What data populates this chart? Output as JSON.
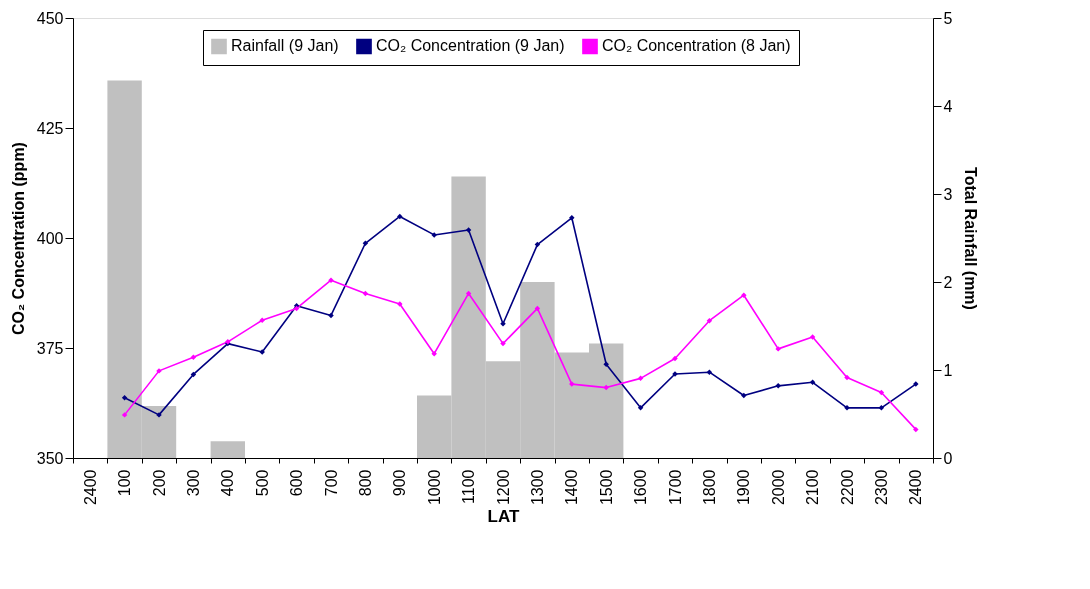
{
  "chart_data": {
    "type": "line",
    "xlabel": "LAT",
    "ylabel": "CO₂ Concentration (ppm)",
    "y2label": "Total Rainfall (mm)",
    "categories": [
      "2400",
      "100",
      "200",
      "300",
      "400",
      "500",
      "600",
      "700",
      "800",
      "900",
      "1000",
      "1100",
      "1200",
      "1300",
      "1400",
      "1500",
      "1600",
      "1700",
      "1800",
      "1900",
      "2000",
      "2100",
      "2200",
      "2300",
      "2400"
    ],
    "series": [
      {
        "name": "Rainfall (9 Jan)",
        "type": "bar",
        "axis": "y2",
        "color": "#c0c0c0",
        "values": [
          null,
          4.29,
          0.59,
          null,
          0.19,
          null,
          null,
          null,
          null,
          null,
          0.71,
          3.2,
          1.1,
          2.0,
          1.2,
          1.3,
          null,
          null,
          null,
          null,
          null,
          null,
          null,
          null,
          null
        ]
      },
      {
        "name": "CO₂ Concentration (9 Jan)",
        "color": "#000080",
        "values": [
          null,
          363.7,
          359.8,
          369.0,
          376.0,
          374.1,
          384.6,
          382.4,
          398.8,
          404.9,
          400.7,
          401.8,
          380.5,
          398.5,
          404.6,
          371.3,
          361.4,
          369.1,
          369.5,
          364.2,
          366.4,
          367.2,
          361.4,
          361.4,
          366.8
        ]
      },
      {
        "name": "CO₂ Concentration (8 Jan)",
        "color": "#ff00ff",
        "values": [
          null,
          359.8,
          369.8,
          372.9,
          376.4,
          381.3,
          384.0,
          390.4,
          387.4,
          385.0,
          373.7,
          387.4,
          376.0,
          384.0,
          366.8,
          366.0,
          368.1,
          372.6,
          381.2,
          387.0,
          374.8,
          377.5,
          368.3,
          364.9,
          356.5
        ]
      }
    ],
    "ylim": [
      350,
      450
    ],
    "yticks": [
      350,
      375,
      400,
      425,
      450
    ],
    "y2lim": [
      0,
      5
    ],
    "y2ticks": [
      0,
      1,
      2,
      3,
      4,
      5
    ],
    "grid": false,
    "legend": "top",
    "marker": "diamond",
    "line_style": "solid"
  }
}
